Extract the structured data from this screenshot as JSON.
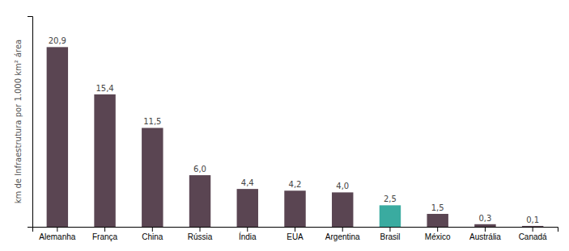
{
  "chart_data": {
    "type": "bar",
    "ylabel": "km de Infraestrutura por 1.000 km² área",
    "categories": [
      "Alemanha",
      "França",
      "China",
      "Rússia",
      "Índia",
      "EUA",
      "Argentina",
      "Brasil",
      "México",
      "Austrália",
      "Canadá"
    ],
    "values": [
      20.9,
      15.4,
      11.5,
      6.0,
      4.4,
      4.2,
      4.0,
      2.5,
      1.5,
      0.3,
      0.1
    ],
    "value_labels": [
      "20,9",
      "15,4",
      "11,5",
      "6,0",
      "4,4",
      "4,2",
      "4,0",
      "2,5",
      "1,5",
      "0,3",
      "0,1"
    ],
    "colors": [
      "#5a4552",
      "#5a4552",
      "#5a4552",
      "#5a4552",
      "#5a4552",
      "#5a4552",
      "#5a4552",
      "#3aaba0",
      "#5a4552",
      "#5a4552",
      "#5a4552"
    ],
    "ylim": [
      0,
      24.5
    ],
    "grid": false,
    "data_labels": true,
    "tick_labels": "x"
  }
}
